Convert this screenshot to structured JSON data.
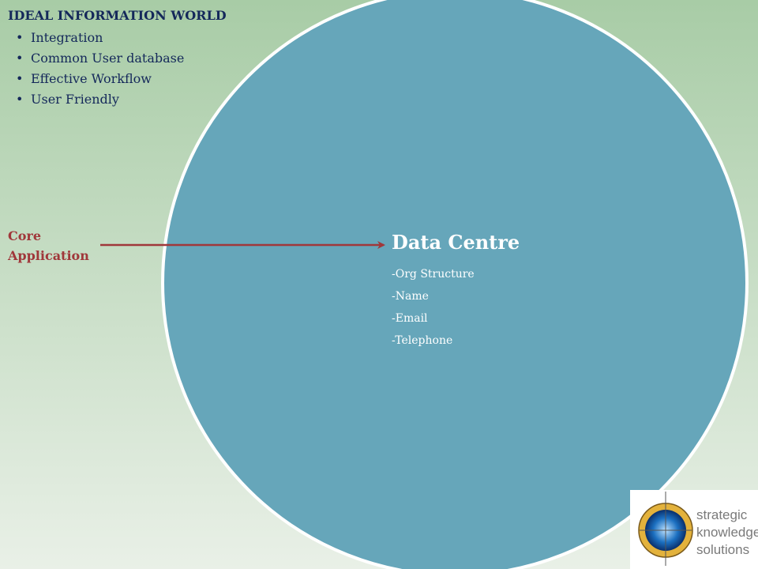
{
  "title": "IDEAL INFORMATION WORLD",
  "bullets": [
    "Integration",
    "Common User database",
    "Effective Workflow",
    "User Friendly"
  ],
  "core_label": [
    "Core",
    "Application"
  ],
  "data_centre": {
    "title": "Data Centre",
    "items": [
      "-Org Structure",
      "-Name",
      "-Email",
      "-Telephone"
    ]
  },
  "logo": {
    "lines": [
      "strategic",
      "knowledge",
      "solutions"
    ]
  }
}
